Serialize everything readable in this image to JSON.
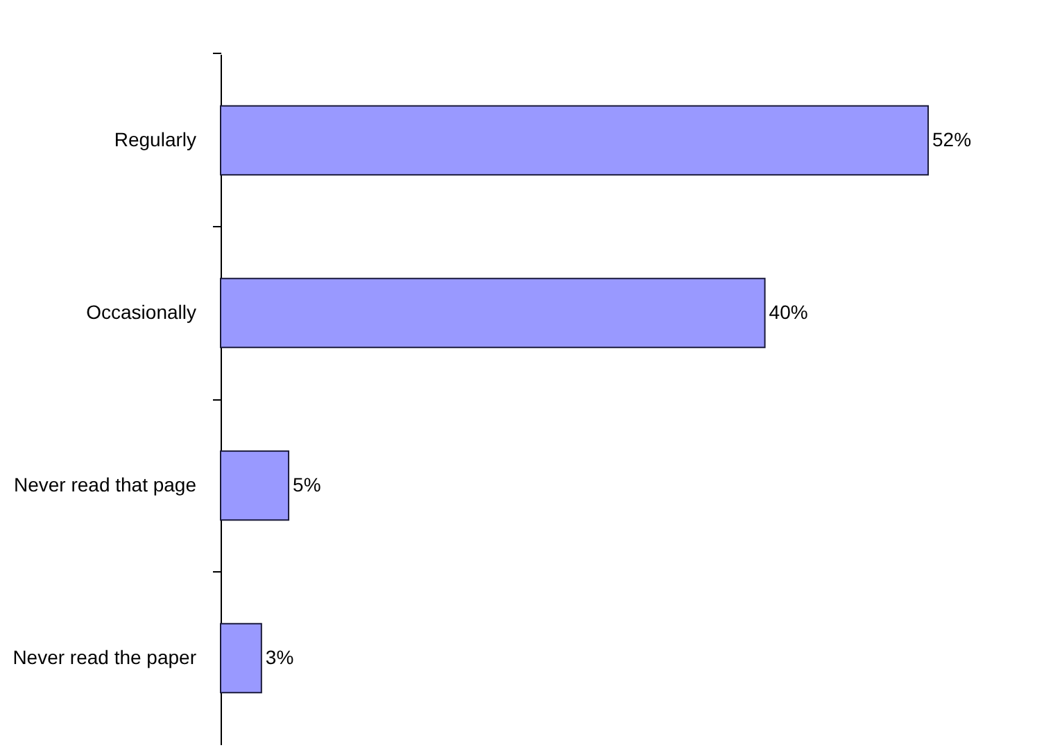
{
  "chart_data": {
    "type": "bar",
    "orientation": "horizontal",
    "categories": [
      "Regularly",
      "Occasionally",
      "Never read that page",
      "Never read the paper"
    ],
    "values": [
      52,
      40,
      5,
      3
    ],
    "value_labels": [
      "52%",
      "40%",
      "5%",
      "3%"
    ],
    "color": "#9999ff"
  }
}
